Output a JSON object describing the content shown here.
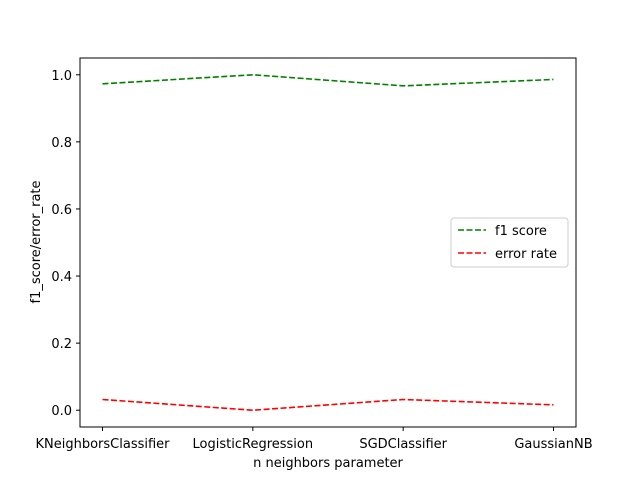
{
  "chart_data": {
    "type": "line",
    "title": "",
    "xlabel": "n neighbors parameter",
    "ylabel": "f1_score/error_rate",
    "categories": [
      "KNeighborsClassifier",
      "LogisticRegression",
      "SGDClassifier",
      "GaussianNB"
    ],
    "series": [
      {
        "name": "f1 score",
        "color": "#008000",
        "linestyle": "dashed",
        "values": [
          0.973,
          1.0,
          0.967,
          0.986
        ]
      },
      {
        "name": "error rate",
        "color": "#ff0000",
        "linestyle": "dashed",
        "values": [
          0.032,
          0.0,
          0.032,
          0.016
        ]
      }
    ],
    "ylim": [
      -0.05,
      1.05
    ],
    "yticks": [
      "0.0",
      "0.2",
      "0.4",
      "0.6",
      "0.8",
      "1.0"
    ],
    "grid": false,
    "legend_position": "center-right"
  }
}
